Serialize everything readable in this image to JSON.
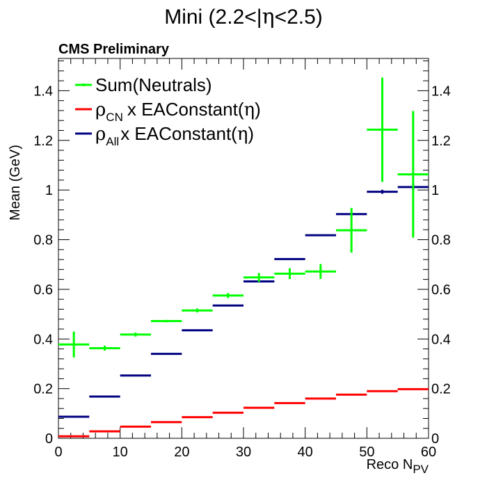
{
  "chart_data": {
    "type": "scatter",
    "title_prefix": "Mini (2.2<|",
    "title_eta": "η",
    "title_suffix": "<2.5)",
    "subtitle": "CMS Preliminary",
    "xlabel_main": "Reco N",
    "xlabel_sub": "PV",
    "ylabel": "Mean (GeV)",
    "xlim": [
      0,
      60
    ],
    "ylim": [
      0,
      1.53
    ],
    "xticks": [
      "0",
      "10",
      "20",
      "30",
      "40",
      "50",
      "60"
    ],
    "yticks": [
      "0",
      "0.2",
      "0.4",
      "0.6",
      "0.8",
      "1",
      "1.2",
      "1.4"
    ],
    "legend_position": "top-left",
    "bin_edges": [
      0,
      5,
      10,
      15,
      20,
      25,
      30,
      35,
      40,
      45,
      50,
      55,
      60
    ],
    "series": [
      {
        "key": "neutrals",
        "name": "Sum(Neutrals)",
        "color": "#00ff00",
        "values": [
          0.378,
          0.363,
          0.418,
          0.472,
          0.515,
          0.575,
          0.648,
          0.663,
          0.672,
          0.838,
          1.243,
          1.063
        ],
        "errors": [
          0.052,
          0.01,
          0.008,
          0.005,
          0.008,
          0.01,
          0.018,
          0.022,
          0.03,
          0.09,
          0.21,
          0.255
        ]
      },
      {
        "key": "rho_cn",
        "legend_sym": "ρ",
        "legend_sub": "CN",
        "legend_main": "x EAConstant(",
        "legend_eta": "η",
        "legend_end": ")",
        "color": "#ff0000",
        "values": [
          0.008,
          0.028,
          0.047,
          0.065,
          0.085,
          0.103,
          0.123,
          0.142,
          0.16,
          0.176,
          0.19,
          0.198
        ],
        "errors": [
          0.001,
          0.001,
          0.001,
          0.001,
          0.001,
          0.001,
          0.001,
          0.001,
          0.001,
          0.001,
          0.002,
          0.003
        ]
      },
      {
        "key": "rho_all",
        "legend_sym": "ρ",
        "legend_sub": "All",
        "legend_main": "x EAConstant(",
        "legend_eta": "η",
        "legend_end": ")",
        "color": "#000080",
        "values": [
          0.087,
          0.168,
          0.253,
          0.34,
          0.435,
          0.535,
          0.632,
          0.722,
          0.818,
          0.903,
          0.993,
          1.012
        ],
        "errors": [
          0.001,
          0.001,
          0.001,
          0.001,
          0.002,
          0.002,
          0.002,
          0.003,
          0.003,
          0.005,
          0.008,
          0.015
        ]
      }
    ]
  }
}
